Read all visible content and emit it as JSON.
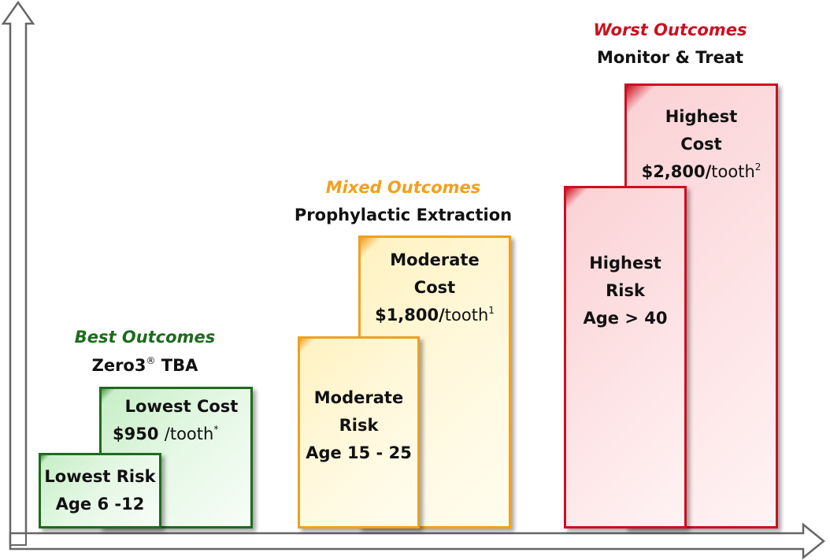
{
  "colors": {
    "best": "#1e6b1e",
    "mixed": "#f0a020",
    "worst": "#cc1020",
    "axis": "#555555"
  },
  "groups": {
    "best": {
      "title": "Best Outcomes",
      "subtitle_main": "Zero3",
      "subtitle_mark": "®",
      "subtitle_rest": " TBA",
      "risk": {
        "line1": "Lowest Risk",
        "line2": "Age 6 -12"
      },
      "cost": {
        "line1": "Lowest Cost",
        "price": "$950 ",
        "unit": "/tooth",
        "note": "*"
      }
    },
    "mixed": {
      "title": "Mixed Outcomes",
      "subtitle": "Prophylactic Extraction",
      "risk": {
        "line1": "Moderate",
        "line2": "Risk",
        "line3": "Age 15 - 25"
      },
      "cost": {
        "line1": "Moderate",
        "line2": "Cost",
        "price": "$1,800/",
        "unit": "tooth",
        "note": "1"
      }
    },
    "worst": {
      "title": "Worst Outcomes",
      "subtitle": "Monitor & Treat",
      "risk": {
        "line1": "Highest",
        "line2": "Risk",
        "line3": "Age > 40"
      },
      "cost": {
        "line1": "Highest",
        "line2": "Cost",
        "price": "$2,800/",
        "unit": "tooth",
        "note": "2"
      }
    }
  }
}
